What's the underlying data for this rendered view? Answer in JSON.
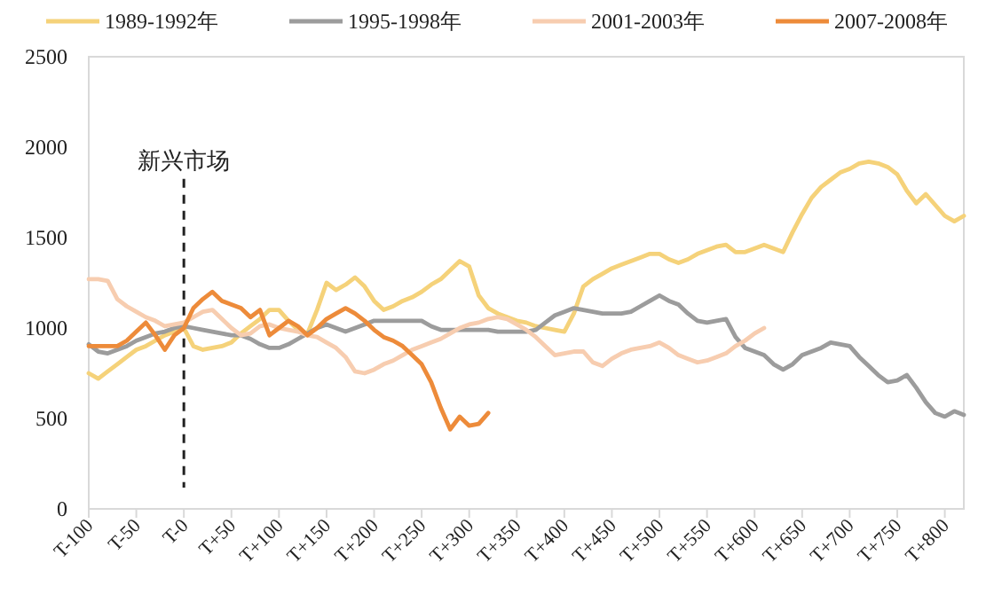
{
  "chart_data": {
    "type": "line",
    "legend": "top",
    "grid": false,
    "line_style": "solid",
    "marker": "none",
    "categories": [
      "T-100",
      null,
      null,
      null,
      null,
      "T-50",
      null,
      null,
      null,
      null,
      "T-0",
      null,
      null,
      null,
      null,
      "T+50",
      null,
      null,
      null,
      null,
      "T+100",
      null,
      null,
      null,
      null,
      "T+150",
      null,
      null,
      null,
      null,
      "T+200",
      null,
      null,
      null,
      null,
      "T+250",
      null,
      null,
      null,
      null,
      "T+300",
      null,
      null,
      null,
      null,
      "T+350",
      null,
      null,
      null,
      null,
      "T+400",
      null,
      null,
      null,
      null,
      "T+450",
      null,
      null,
      null,
      null,
      "T+500",
      null,
      null,
      null,
      null,
      "T+550",
      null,
      null,
      null,
      null,
      "T+600",
      null,
      null,
      null,
      null,
      "T+650",
      null,
      null,
      null,
      null,
      "T+700",
      null,
      null,
      null,
      null,
      "T+750",
      null,
      null,
      null,
      null,
      "T+800",
      null,
      null
    ],
    "ylim": [
      0,
      2500
    ],
    "yticks": [
      0,
      500,
      1000,
      1500,
      2000,
      2500
    ],
    "ref_lines": [
      {
        "axis": "x",
        "value": "T-0",
        "label": "新兴市场",
        "color": "#222222",
        "line_style": "dashed"
      }
    ],
    "series": [
      {
        "name": "1989-1992年",
        "color": "#f5d27a",
        "values": [
          750,
          720,
          760,
          800,
          840,
          880,
          900,
          930,
          960,
          980,
          1000,
          900,
          880,
          890,
          900,
          920,
          970,
          1010,
          1050,
          1100,
          1100,
          1040,
          990,
          970,
          1100,
          1250,
          1210,
          1240,
          1280,
          1230,
          1150,
          1100,
          1120,
          1150,
          1170,
          1200,
          1240,
          1270,
          1320,
          1370,
          1340,
          1180,
          1110,
          1080,
          1060,
          1040,
          1030,
          1010,
          1000,
          990,
          980,
          1080,
          1230,
          1270,
          1300,
          1330,
          1350,
          1370,
          1390,
          1410,
          1410,
          1380,
          1360,
          1380,
          1410,
          1430,
          1450,
          1460,
          1420,
          1420,
          1440,
          1460,
          1440,
          1420,
          1530,
          1630,
          1720,
          1780,
          1820,
          1860,
          1880,
          1910,
          1920,
          1910,
          1890,
          1850,
          1760,
          1690,
          1740,
          1680,
          1620,
          1590,
          1620
        ]
      },
      {
        "name": "1995-1998年",
        "color": "#9c9c9c",
        "values": [
          910,
          870,
          860,
          880,
          900,
          930,
          950,
          970,
          980,
          1000,
          1010,
          1000,
          990,
          980,
          970,
          960,
          960,
          940,
          910,
          890,
          890,
          910,
          940,
          970,
          1000,
          1020,
          1000,
          980,
          1000,
          1020,
          1040,
          1040,
          1040,
          1040,
          1040,
          1040,
          1010,
          990,
          990,
          990,
          990,
          990,
          990,
          980,
          980,
          980,
          980,
          990,
          1030,
          1070,
          1090,
          1110,
          1100,
          1090,
          1080,
          1080,
          1080,
          1090,
          1120,
          1150,
          1180,
          1150,
          1130,
          1080,
          1040,
          1030,
          1040,
          1050,
          950,
          890,
          870,
          850,
          800,
          770,
          800,
          850,
          870,
          890,
          920,
          910,
          900,
          840,
          790,
          740,
          700,
          710,
          740,
          670,
          590,
          530,
          510,
          540,
          520
        ]
      },
      {
        "name": "2001-2003年",
        "color": "#f7cdb0",
        "values": [
          1270,
          1270,
          1260,
          1160,
          1120,
          1090,
          1060,
          1040,
          1010,
          1020,
          1030,
          1060,
          1090,
          1100,
          1050,
          1000,
          960,
          970,
          1010,
          1020,
          1000,
          990,
          980,
          960,
          950,
          920,
          890,
          840,
          760,
          750,
          770,
          800,
          820,
          850,
          880,
          900,
          920,
          940,
          970,
          1000,
          1020,
          1030,
          1050,
          1060,
          1050,
          1020,
          990,
          950,
          900,
          850,
          860,
          870,
          870,
          810,
          790,
          830,
          860,
          880,
          890,
          900,
          920,
          890,
          850,
          830,
          810,
          820,
          840,
          860,
          900,
          930,
          970,
          1000,
          null,
          null,
          null,
          null,
          null,
          null,
          null,
          null,
          null,
          null,
          null,
          null,
          null,
          null,
          null,
          null,
          null,
          null,
          null,
          null,
          null
        ]
      },
      {
        "name": "2007-2008年",
        "color": "#ed8b3a",
        "values": [
          900,
          900,
          900,
          900,
          930,
          980,
          1030,
          960,
          880,
          960,
          1000,
          1110,
          1160,
          1200,
          1150,
          1130,
          1110,
          1060,
          1100,
          960,
          1000,
          1040,
          1010,
          960,
          1000,
          1050,
          1080,
          1110,
          1080,
          1040,
          990,
          950,
          930,
          900,
          850,
          800,
          700,
          560,
          440,
          510,
          460,
          470,
          530,
          null,
          null,
          null,
          null,
          null,
          null,
          null,
          null,
          null,
          null,
          null,
          null,
          null,
          null,
          null,
          null,
          null,
          null,
          null,
          null,
          null,
          null,
          null,
          null,
          null,
          null,
          null,
          null,
          null,
          null,
          null,
          null,
          null,
          null,
          null,
          null,
          null,
          null,
          null,
          null,
          null,
          null,
          null,
          null,
          null,
          null,
          null,
          null,
          null,
          null
        ]
      }
    ]
  }
}
